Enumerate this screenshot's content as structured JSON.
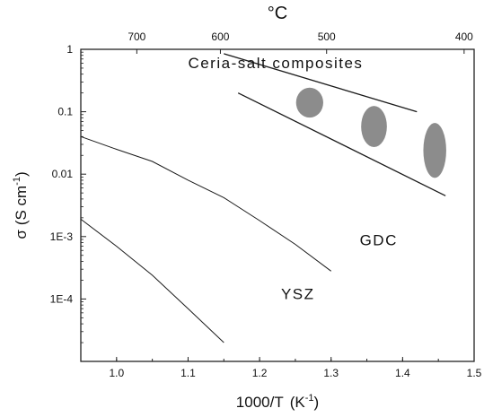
{
  "chart_data": {
    "type": "line",
    "xlabel_main": "1000/T",
    "xlabel_unit_base": "K",
    "xlabel_unit_exp": "-1",
    "ylabel_symbol": "σ",
    "ylabel_unit_base": "S cm",
    "ylabel_unit_exp": "-1",
    "top_axis_label": "°C",
    "xlim": [
      0.95,
      1.5
    ],
    "ylim": [
      1e-05,
      1
    ],
    "y_scale": "log",
    "x_ticks": [
      {
        "value": 1.0,
        "label": "1.0"
      },
      {
        "value": 1.1,
        "label": "1.1"
      },
      {
        "value": 1.2,
        "label": "1.2"
      },
      {
        "value": 1.3,
        "label": "1.3"
      },
      {
        "value": 1.4,
        "label": "1.4"
      },
      {
        "value": 1.5,
        "label": "1.5"
      }
    ],
    "y_ticks": [
      {
        "value": 1,
        "label": "1"
      },
      {
        "value": 0.1,
        "label": "0.1"
      },
      {
        "value": 0.01,
        "label": "0.01"
      },
      {
        "value": 0.001,
        "label": "1E-3"
      },
      {
        "value": 0.0001,
        "label": "1E-4"
      }
    ],
    "top_ticks": [
      {
        "x": 1.0283,
        "label": "700"
      },
      {
        "x": 1.1452,
        "label": "600"
      },
      {
        "x": 1.2937,
        "label": "500"
      },
      {
        "x": 1.486,
        "label": "400"
      }
    ],
    "series": [
      {
        "name": "GDC",
        "x": [
          0.95,
          1.0,
          1.05,
          1.1,
          1.15,
          1.2,
          1.25,
          1.3
        ],
        "y": [
          0.04,
          0.025,
          0.016,
          0.008,
          0.0042,
          0.0018,
          0.00075,
          0.00028
        ]
      },
      {
        "name": "YSZ",
        "x": [
          0.95,
          1.0,
          1.05,
          1.1,
          1.15
        ],
        "y": [
          0.0019,
          0.0007,
          0.00024,
          7e-05,
          2e-05
        ]
      }
    ],
    "band_lines": [
      {
        "x": [
          1.15,
          1.42
        ],
        "y": [
          0.85,
          0.1
        ]
      },
      {
        "x": [
          1.17,
          1.46
        ],
        "y": [
          0.2,
          0.0045
        ]
      }
    ],
    "blobs": [
      {
        "x": 1.27,
        "y": 0.14,
        "rx_data": 0.019,
        "ry_dec": 0.24
      },
      {
        "x": 1.36,
        "y": 0.058,
        "rx_data": 0.018,
        "ry_dec": 0.33
      },
      {
        "x": 1.445,
        "y": 0.024,
        "rx_data": 0.016,
        "ry_dec": 0.44
      }
    ],
    "annotations": [
      {
        "label": "Ceria-salt composites",
        "x": 1.1,
        "y": 0.5
      },
      {
        "label": "GDC",
        "x": 1.34,
        "y": 0.00072
      },
      {
        "label": "YSZ",
        "x": 1.23,
        "y": 0.0001
      }
    ],
    "blob_color": "#8c8c8c",
    "line_color": "#1a1a1a"
  }
}
